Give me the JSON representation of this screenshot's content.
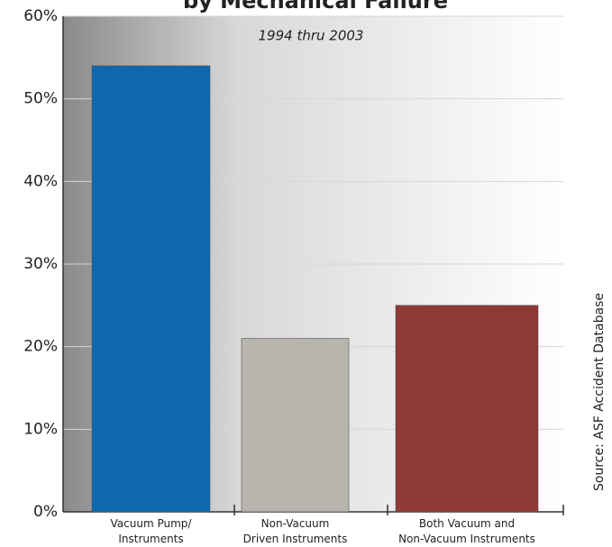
{
  "chart_data": {
    "type": "bar",
    "title": "by Mechanical Failure",
    "subtitle": "1994 thru 2003",
    "source": "Source: ASF Accident Database",
    "categories": [
      "Vacuum Pump/\nInstruments",
      "Non-Vacuum\nDriven Instruments",
      "Both Vacuum and\nNon-Vacuum Instruments"
    ],
    "values": [
      54,
      21,
      25
    ],
    "colors": [
      "#0d68ad",
      "#b7b5ad",
      "#8f3934"
    ],
    "ylim": [
      0,
      60
    ],
    "yticks": [
      {
        "value": 0,
        "label": "0%"
      },
      {
        "value": 10,
        "label": "10%"
      },
      {
        "value": 20,
        "label": "20%"
      },
      {
        "value": 30,
        "label": "30%"
      },
      {
        "value": 40,
        "label": "40%"
      },
      {
        "value": 50,
        "label": "50%"
      },
      {
        "value": 60,
        "label": "60%"
      }
    ],
    "grid": true
  }
}
